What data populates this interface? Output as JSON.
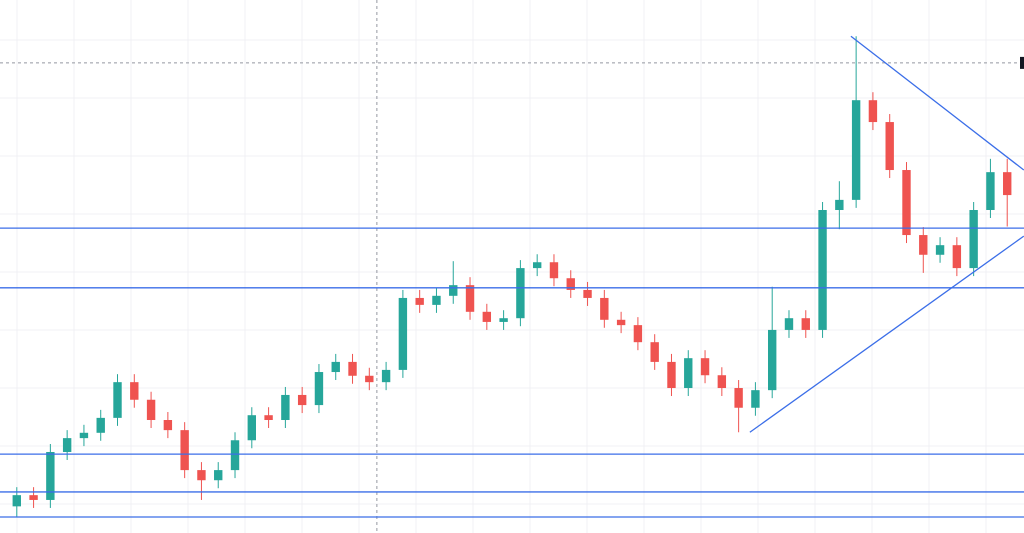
{
  "chart_data": {
    "type": "candlestick",
    "xlim": [
      -1,
      60
    ],
    "ylim": [
      0,
      100
    ],
    "up_color": "#26a69a",
    "down_color": "#ef5350",
    "line_color": "#3b6ee8",
    "open": [
      5.0,
      7.1,
      6.2,
      15.2,
      17.8,
      18.8,
      21.6,
      28.3,
      25.0,
      21.2,
      19.3,
      11.8,
      9.9,
      11.8,
      17.4,
      22.1,
      21.2,
      25.9,
      24.0,
      30.2,
      32.1,
      29.5,
      28.3,
      30.6,
      44.1,
      42.8,
      44.5,
      46.5,
      41.5,
      39.6,
      40.3,
      49.7,
      50.8,
      47.8,
      45.6,
      44.1,
      40.0,
      39.0,
      35.8,
      32.1,
      27.2,
      32.8,
      29.6,
      27.2,
      23.5,
      26.8,
      38.1,
      40.3,
      38.1,
      60.6,
      62.5,
      81.2,
      77.1,
      68.1,
      55.9,
      52.2,
      54.0,
      49.7,
      60.6,
      67.7
    ],
    "high": [
      8.6,
      8.6,
      16.7,
      19.3,
      20.3,
      23.1,
      29.8,
      29.8,
      26.5,
      22.7,
      20.8,
      13.3,
      13.3,
      18.9,
      23.6,
      23.6,
      27.4,
      27.4,
      31.7,
      33.6,
      33.6,
      31.0,
      32.1,
      45.6,
      45.6,
      46.0,
      51.0,
      48.0,
      43.0,
      41.8,
      51.2,
      52.3,
      52.3,
      49.3,
      47.1,
      45.6,
      41.5,
      40.5,
      37.3,
      33.6,
      34.3,
      34.3,
      31.1,
      28.7,
      28.3,
      46.2,
      41.8,
      41.8,
      62.1,
      66.0,
      93.2,
      82.7,
      78.6,
      69.6,
      57.4,
      55.5,
      55.5,
      62.1,
      70.2,
      70.2
    ],
    "low": [
      3.0,
      4.7,
      4.7,
      13.7,
      16.3,
      17.3,
      20.1,
      23.5,
      19.7,
      17.8,
      10.3,
      6.2,
      8.4,
      10.3,
      15.9,
      19.7,
      19.7,
      22.5,
      22.5,
      28.7,
      28.0,
      26.8,
      26.8,
      29.1,
      41.3,
      41.3,
      43.0,
      40.0,
      38.1,
      38.1,
      38.8,
      48.2,
      46.3,
      44.1,
      42.6,
      38.5,
      37.5,
      34.3,
      30.6,
      25.7,
      25.7,
      28.1,
      25.7,
      18.9,
      22.0,
      25.3,
      36.6,
      36.6,
      36.6,
      57.0,
      61.0,
      75.6,
      66.6,
      54.4,
      48.8,
      50.7,
      48.2,
      48.2,
      59.1,
      57.5
    ],
    "close": [
      7.1,
      6.2,
      15.2,
      17.8,
      18.8,
      21.6,
      28.3,
      25.0,
      21.2,
      19.3,
      11.8,
      9.9,
      11.8,
      17.4,
      22.1,
      21.2,
      25.9,
      24.0,
      30.2,
      32.1,
      29.5,
      28.3,
      30.6,
      44.1,
      42.8,
      44.5,
      46.5,
      41.5,
      39.6,
      40.3,
      49.7,
      50.8,
      47.8,
      45.6,
      44.1,
      40.0,
      39.0,
      35.8,
      32.1,
      27.2,
      32.8,
      29.6,
      27.2,
      23.5,
      26.8,
      38.1,
      40.3,
      38.1,
      60.6,
      62.5,
      81.2,
      77.1,
      68.1,
      55.9,
      52.2,
      54.0,
      49.7,
      60.6,
      67.7,
      63.4
    ],
    "hlines": [
      57.2,
      46.0,
      14.8,
      7.7,
      3.0
    ],
    "trendlines": [
      {
        "x": [
          43.67,
          59.99
        ],
        "y": [
          18.9,
          55.7
        ]
      },
      {
        "x": [
          49.69,
          59.99
        ],
        "y": [
          93.2,
          68.1
        ]
      }
    ],
    "crosshair": {
      "x": 21.45,
      "y": 88.2
    }
  }
}
